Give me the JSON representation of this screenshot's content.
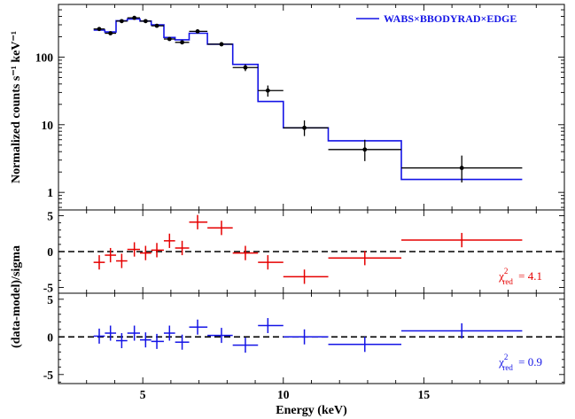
{
  "chart_data": [
    {
      "type": "line",
      "panel": "spectrum",
      "ylabel": "Normalized counts s⁻¹ keV⁻¹",
      "yscale": "log",
      "ylim": [
        0.55,
        600
      ],
      "yticks": [
        "1",
        "10",
        "100"
      ],
      "xlim": [
        2,
        20
      ],
      "legend": {
        "label": "WABS×BBODYRAD×EDGE",
        "placement": "top-right"
      },
      "colors": {
        "data": "#000000",
        "model": "#1414e6"
      },
      "series": [
        {
          "kind": "data-with-errors",
          "x": [
            3.45,
            3.85,
            4.25,
            4.7,
            5.1,
            5.5,
            5.95,
            6.4,
            6.95,
            7.8,
            8.65,
            9.45,
            10.75,
            12.9,
            16.35
          ],
          "x_lo": [
            3.25,
            3.65,
            4.05,
            4.45,
            4.9,
            5.3,
            5.75,
            6.15,
            6.65,
            7.3,
            8.2,
            9.1,
            10.0,
            11.6,
            14.2
          ],
          "x_hi": [
            3.65,
            4.05,
            4.45,
            4.9,
            5.3,
            5.75,
            6.15,
            6.65,
            7.3,
            8.2,
            9.1,
            10.0,
            11.6,
            14.2,
            18.5
          ],
          "y": [
            260,
            225,
            340,
            380,
            340,
            290,
            185,
            165,
            240,
            155,
            70,
            32,
            9,
            4.3,
            2.3
          ],
          "y_lo": [
            245,
            212,
            325,
            362,
            324,
            274,
            175,
            155,
            226,
            144,
            62,
            26,
            6.8,
            2.9,
            1.4
          ],
          "y_hi": [
            275,
            238,
            355,
            398,
            356,
            306,
            195,
            175,
            254,
            166,
            78,
            38,
            11.6,
            6.0,
            3.5
          ]
        },
        {
          "kind": "model-histogram",
          "edges": [
            3.25,
            3.65,
            4.05,
            4.45,
            4.9,
            5.3,
            5.75,
            6.15,
            6.65,
            7.3,
            8.2,
            9.1,
            10.0,
            11.6,
            14.2,
            18.5
          ],
          "y": [
            250,
            235,
            345,
            365,
            340,
            300,
            195,
            180,
            225,
            155,
            78,
            22,
            9,
            5.8,
            1.55
          ]
        }
      ]
    },
    {
      "type": "scatter",
      "panel": "residuals-1",
      "ylim": [
        -5.8,
        5.8
      ],
      "yticks": [
        "-5",
        "0",
        "5"
      ],
      "zero_line": true,
      "color": "#e60000",
      "annotation": {
        "chi_symbol": "χ",
        "chi_sup": "2",
        "chi_sub": "red",
        "value": "= 4.1"
      },
      "x": [
        3.45,
        3.85,
        4.25,
        4.7,
        5.1,
        5.5,
        5.95,
        6.4,
        6.95,
        7.8,
        8.65,
        9.45,
        10.75,
        12.9,
        16.35
      ],
      "x_lo": [
        3.25,
        3.65,
        4.05,
        4.45,
        4.9,
        5.3,
        5.75,
        6.15,
        6.65,
        7.3,
        8.2,
        9.1,
        10.0,
        11.6,
        14.2
      ],
      "x_hi": [
        3.65,
        4.05,
        4.45,
        4.9,
        5.3,
        5.75,
        6.15,
        6.65,
        7.3,
        8.2,
        9.1,
        10.0,
        11.6,
        14.2,
        18.5
      ],
      "y": [
        -1.5,
        -0.5,
        -1.3,
        0.3,
        -0.2,
        0.2,
        1.5,
        0.5,
        4.1,
        3.3,
        -0.2,
        -1.5,
        -3.5,
        -0.9,
        1.6
      ],
      "y_err": [
        1,
        1,
        1,
        1,
        1,
        1,
        1,
        1,
        1,
        1,
        1,
        1,
        1,
        1,
        1
      ]
    },
    {
      "type": "scatter",
      "panel": "residuals-2",
      "ylim": [
        -6.2,
        5.8
      ],
      "yticks": [
        "-5",
        "0",
        "5"
      ],
      "zero_line": true,
      "color": "#1414e6",
      "annotation": {
        "chi_symbol": "χ",
        "chi_sup": "2",
        "chi_sub": "red",
        "value": "= 0.9"
      },
      "xlabel": "Energy (keV)",
      "xticks": [
        "5",
        "10",
        "15"
      ],
      "x": [
        3.45,
        3.85,
        4.25,
        4.7,
        5.1,
        5.5,
        5.95,
        6.4,
        6.95,
        7.8,
        8.65,
        9.45,
        10.75,
        12.9,
        16.35
      ],
      "x_lo": [
        3.25,
        3.65,
        4.05,
        4.45,
        4.9,
        5.3,
        5.75,
        6.15,
        6.65,
        7.3,
        8.2,
        9.1,
        10.0,
        11.6,
        14.2
      ],
      "x_hi": [
        3.65,
        4.05,
        4.45,
        4.9,
        5.3,
        5.75,
        6.15,
        6.65,
        7.3,
        8.2,
        9.1,
        10.0,
        11.6,
        14.2,
        18.5
      ],
      "y": [
        0.1,
        0.5,
        -0.5,
        0.5,
        -0.4,
        -0.6,
        0.5,
        -0.7,
        1.3,
        0.2,
        -1.1,
        1.5,
        0.0,
        -1.0,
        0.8
      ],
      "y_err": [
        1,
        1,
        1,
        1,
        1,
        1,
        1,
        1,
        1,
        1,
        1,
        1,
        1,
        1,
        1
      ]
    }
  ],
  "shared_ylabel_residuals": "(data-model)/sigma"
}
